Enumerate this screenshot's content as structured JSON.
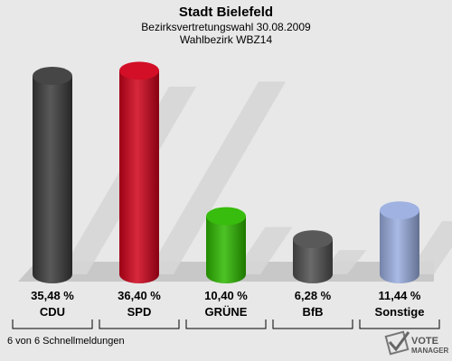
{
  "chart_data": {
    "type": "bar",
    "title": "Stadt Bielefeld",
    "subtitle": "Bezirksvertretungswahl 30.08.2009",
    "subtitle2": "Wahlbezirk WBZ14",
    "categories": [
      "CDU",
      "SPD",
      "GRÜNE",
      "BfB",
      "Sonstige"
    ],
    "values": [
      35.48,
      36.4,
      10.4,
      6.28,
      11.44
    ],
    "value_labels": [
      "35,48 %",
      "36,40 %",
      "10,40 %",
      "6,28 %",
      "11,44 %"
    ],
    "colors": [
      "#3c3c3c",
      "#d0021b",
      "#2eb800",
      "#505050",
      "#9aaee0"
    ],
    "ylim": [
      0,
      40
    ],
    "grid": false
  },
  "footer": {
    "text": "6 von 6 Schnellmeldungen"
  },
  "logo": {
    "line1": "VOTE",
    "line2": "MANAGER"
  }
}
